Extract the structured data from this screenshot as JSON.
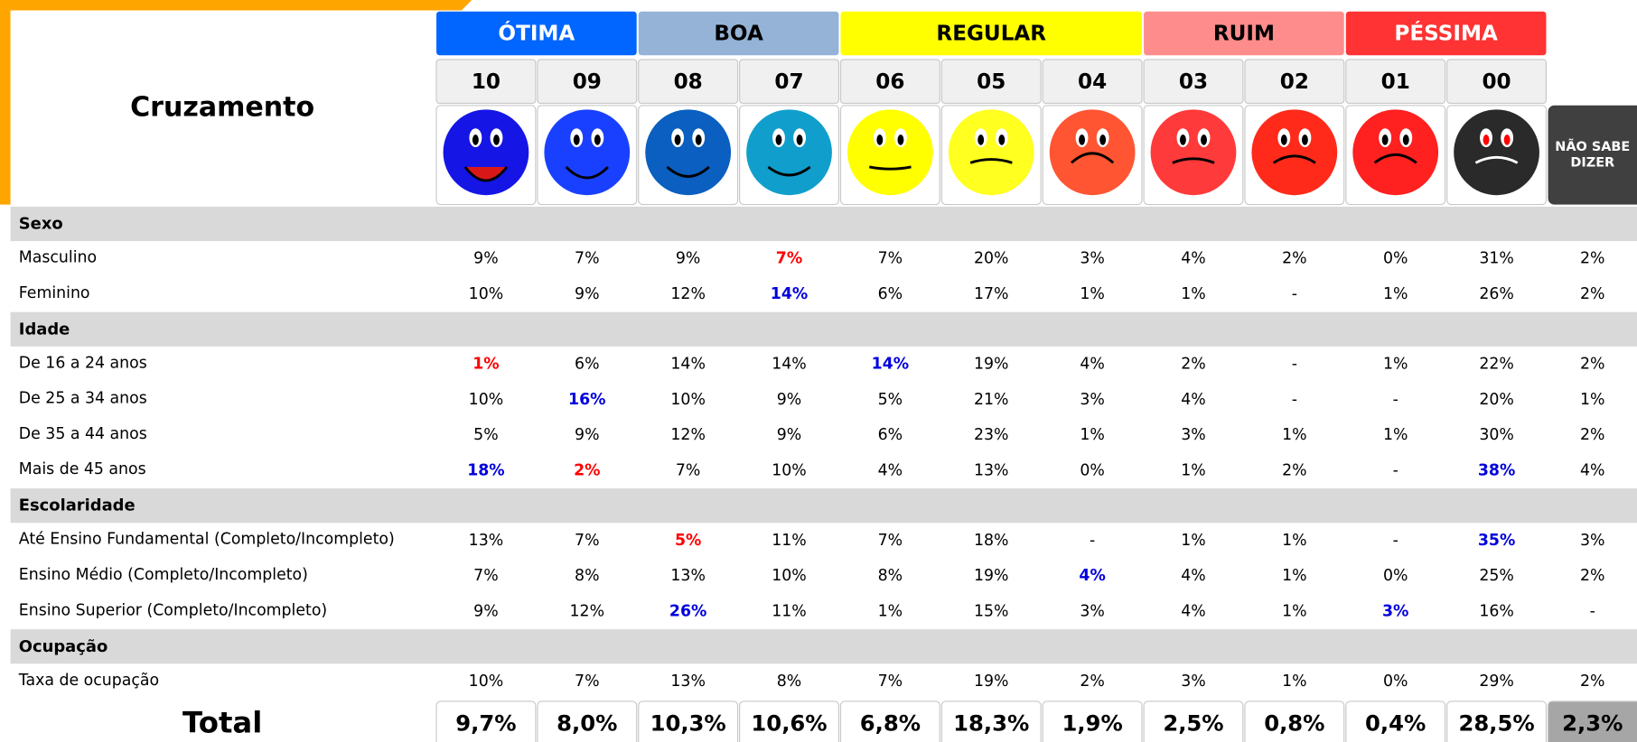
{
  "title": "Cruzamento",
  "groups": [
    {
      "label": "ÓTIMA",
      "color": "#0066ff",
      "text_color": "#ffffff",
      "scores": [
        "10",
        "09"
      ]
    },
    {
      "label": "BOA",
      "color": "#95b3d7",
      "text_color": "#000000",
      "scores": [
        "08",
        "07"
      ]
    },
    {
      "label": "REGULAR",
      "color": "#ffff00",
      "text_color": "#000000",
      "scores": [
        "06",
        "05",
        "04"
      ]
    },
    {
      "label": "RUIM",
      "color": "#ff8c8c",
      "text_color": "#000000",
      "scores": [
        "03",
        "02"
      ]
    },
    {
      "label": "PÉSSIMA",
      "color": "#ff3333",
      "text_color": "#ffffff",
      "scores": [
        "01",
        "00"
      ]
    }
  ],
  "dont_know_label": [
    "NÃO SABE",
    "DIZER"
  ],
  "sections": [
    {
      "title": "Sexo",
      "rows": [
        {
          "label": "Masculino",
          "values": [
            "9%",
            "7%",
            "9%",
            "7%",
            "7%",
            "20%",
            "3%",
            "4%",
            "2%",
            "0%",
            "31%",
            "2%"
          ],
          "highlights": [
            {
              "col": 3,
              "color": "#ff0000"
            }
          ]
        },
        {
          "label": "Feminino",
          "values": [
            "10%",
            "9%",
            "12%",
            "14%",
            "6%",
            "17%",
            "1%",
            "1%",
            "-",
            "1%",
            "26%",
            "2%"
          ],
          "highlights": [
            {
              "col": 3,
              "color": "#0000dd"
            }
          ]
        }
      ]
    },
    {
      "title": "Idade",
      "rows": [
        {
          "label": "De 16 a 24 anos",
          "values": [
            "1%",
            "6%",
            "14%",
            "14%",
            "14%",
            "19%",
            "4%",
            "2%",
            "-",
            "1%",
            "22%",
            "2%"
          ],
          "highlights": [
            {
              "col": 0,
              "color": "#ff0000"
            },
            {
              "col": 4,
              "color": "#0000dd"
            }
          ]
        },
        {
          "label": "De 25 a 34 anos",
          "values": [
            "10%",
            "16%",
            "10%",
            "9%",
            "5%",
            "21%",
            "3%",
            "4%",
            "-",
            "-",
            "20%",
            "1%"
          ],
          "highlights": [
            {
              "col": 1,
              "color": "#0000dd"
            }
          ]
        },
        {
          "label": "De 35 a 44 anos",
          "values": [
            "5%",
            "9%",
            "12%",
            "9%",
            "6%",
            "23%",
            "1%",
            "3%",
            "1%",
            "1%",
            "30%",
            "2%"
          ],
          "highlights": []
        },
        {
          "label": "Mais de 45 anos",
          "values": [
            "18%",
            "2%",
            "7%",
            "10%",
            "4%",
            "13%",
            "0%",
            "1%",
            "2%",
            "-",
            "38%",
            "4%"
          ],
          "highlights": [
            {
              "col": 0,
              "color": "#0000dd"
            },
            {
              "col": 1,
              "color": "#ff0000"
            },
            {
              "col": 10,
              "color": "#0000dd"
            }
          ]
        }
      ]
    },
    {
      "title": "Escolaridade",
      "rows": [
        {
          "label": "Até Ensino Fundamental (Completo/Incompleto)",
          "values": [
            "13%",
            "7%",
            "5%",
            "11%",
            "7%",
            "18%",
            "-",
            "1%",
            "1%",
            "-",
            "35%",
            "3%"
          ],
          "highlights": [
            {
              "col": 2,
              "color": "#ff0000"
            },
            {
              "col": 10,
              "color": "#0000dd"
            }
          ]
        },
        {
          "label": "Ensino Médio (Completo/Incompleto)",
          "values": [
            "7%",
            "8%",
            "13%",
            "10%",
            "8%",
            "19%",
            "4%",
            "4%",
            "1%",
            "0%",
            "25%",
            "2%"
          ],
          "highlights": [
            {
              "col": 6,
              "color": "#0000dd"
            }
          ]
        },
        {
          "label": "Ensino Superior (Completo/Incompleto)",
          "values": [
            "9%",
            "12%",
            "26%",
            "11%",
            "1%",
            "15%",
            "3%",
            "4%",
            "1%",
            "3%",
            "16%",
            "-"
          ],
          "highlights": [
            {
              "col": 2,
              "color": "#0000dd"
            },
            {
              "col": 9,
              "color": "#0000dd"
            }
          ]
        }
      ]
    },
    {
      "title": "Ocupação",
      "rows": [
        {
          "label": "Taxa de ocupação",
          "values": [
            "10%",
            "7%",
            "13%",
            "8%",
            "7%",
            "19%",
            "2%",
            "3%",
            "1%",
            "0%",
            "29%",
            "2%"
          ],
          "highlights": []
        }
      ]
    }
  ],
  "total": {
    "label": "Total",
    "values": [
      "9,7%",
      "8,0%",
      "10,3%",
      "10,6%",
      "6,8%",
      "18,3%",
      "1,9%",
      "2,5%",
      "0,8%",
      "0,4%",
      "28,5%",
      "2,3%"
    ]
  }
}
